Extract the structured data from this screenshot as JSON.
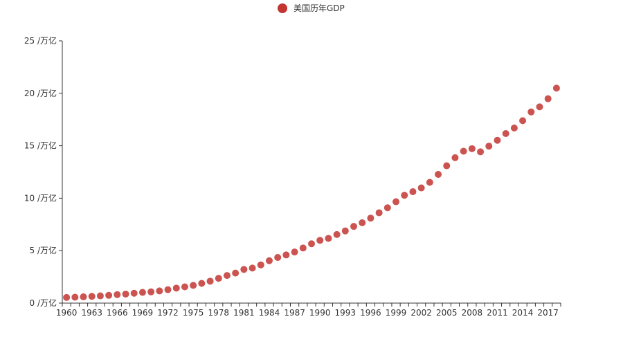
{
  "chart_data": {
    "type": "scatter",
    "title": "",
    "legend": {
      "label": "美国历年GDP",
      "position": "top-center"
    },
    "series": [
      {
        "name": "美国历年GDP",
        "x": [
          1960,
          1961,
          1962,
          1963,
          1964,
          1965,
          1966,
          1967,
          1968,
          1969,
          1970,
          1971,
          1972,
          1973,
          1974,
          1975,
          1976,
          1977,
          1978,
          1979,
          1980,
          1981,
          1982,
          1983,
          1984,
          1985,
          1986,
          1987,
          1988,
          1989,
          1990,
          1991,
          1992,
          1993,
          1994,
          1995,
          1996,
          1997,
          1998,
          1999,
          2000,
          2001,
          2002,
          2003,
          2004,
          2005,
          2006,
          2007,
          2008,
          2009,
          2010,
          2011,
          2012,
          2013,
          2014,
          2015,
          2016,
          2017,
          2018
        ],
        "values": [
          0.54,
          0.56,
          0.6,
          0.64,
          0.69,
          0.74,
          0.81,
          0.86,
          0.94,
          1.02,
          1.07,
          1.16,
          1.28,
          1.43,
          1.55,
          1.69,
          1.88,
          2.09,
          2.36,
          2.63,
          2.86,
          3.21,
          3.34,
          3.64,
          4.04,
          4.35,
          4.59,
          4.87,
          5.25,
          5.66,
          5.98,
          6.17,
          6.54,
          6.88,
          7.31,
          7.66,
          8.1,
          8.61,
          9.09,
          9.66,
          10.28,
          10.62,
          10.98,
          11.51,
          12.27,
          13.09,
          13.86,
          14.48,
          14.72,
          14.42,
          14.96,
          15.52,
          16.16,
          16.69,
          17.39,
          18.22,
          18.71,
          19.48,
          20.49
        ]
      }
    ],
    "x_ticks": [
      "1960",
      "1963",
      "1966",
      "1969",
      "1972",
      "1975",
      "1978",
      "1981",
      "1984",
      "1987",
      "1990",
      "1993",
      "1996",
      "1999",
      "2002",
      "2005",
      "2008",
      "2011",
      "2014",
      "2017"
    ],
    "y_ticks": [
      "0 /万亿",
      "5 /万亿",
      "10 /万亿",
      "15 /万亿",
      "20 /万亿",
      "25 /万亿"
    ],
    "y_tick_values": [
      0,
      5,
      10,
      15,
      20,
      25
    ],
    "ylim": [
      0,
      25
    ],
    "xlim": [
      1960,
      2018
    ],
    "grid": false,
    "colors": {
      "series": "#c23531",
      "axis": "#333333",
      "text": "#333333"
    }
  }
}
